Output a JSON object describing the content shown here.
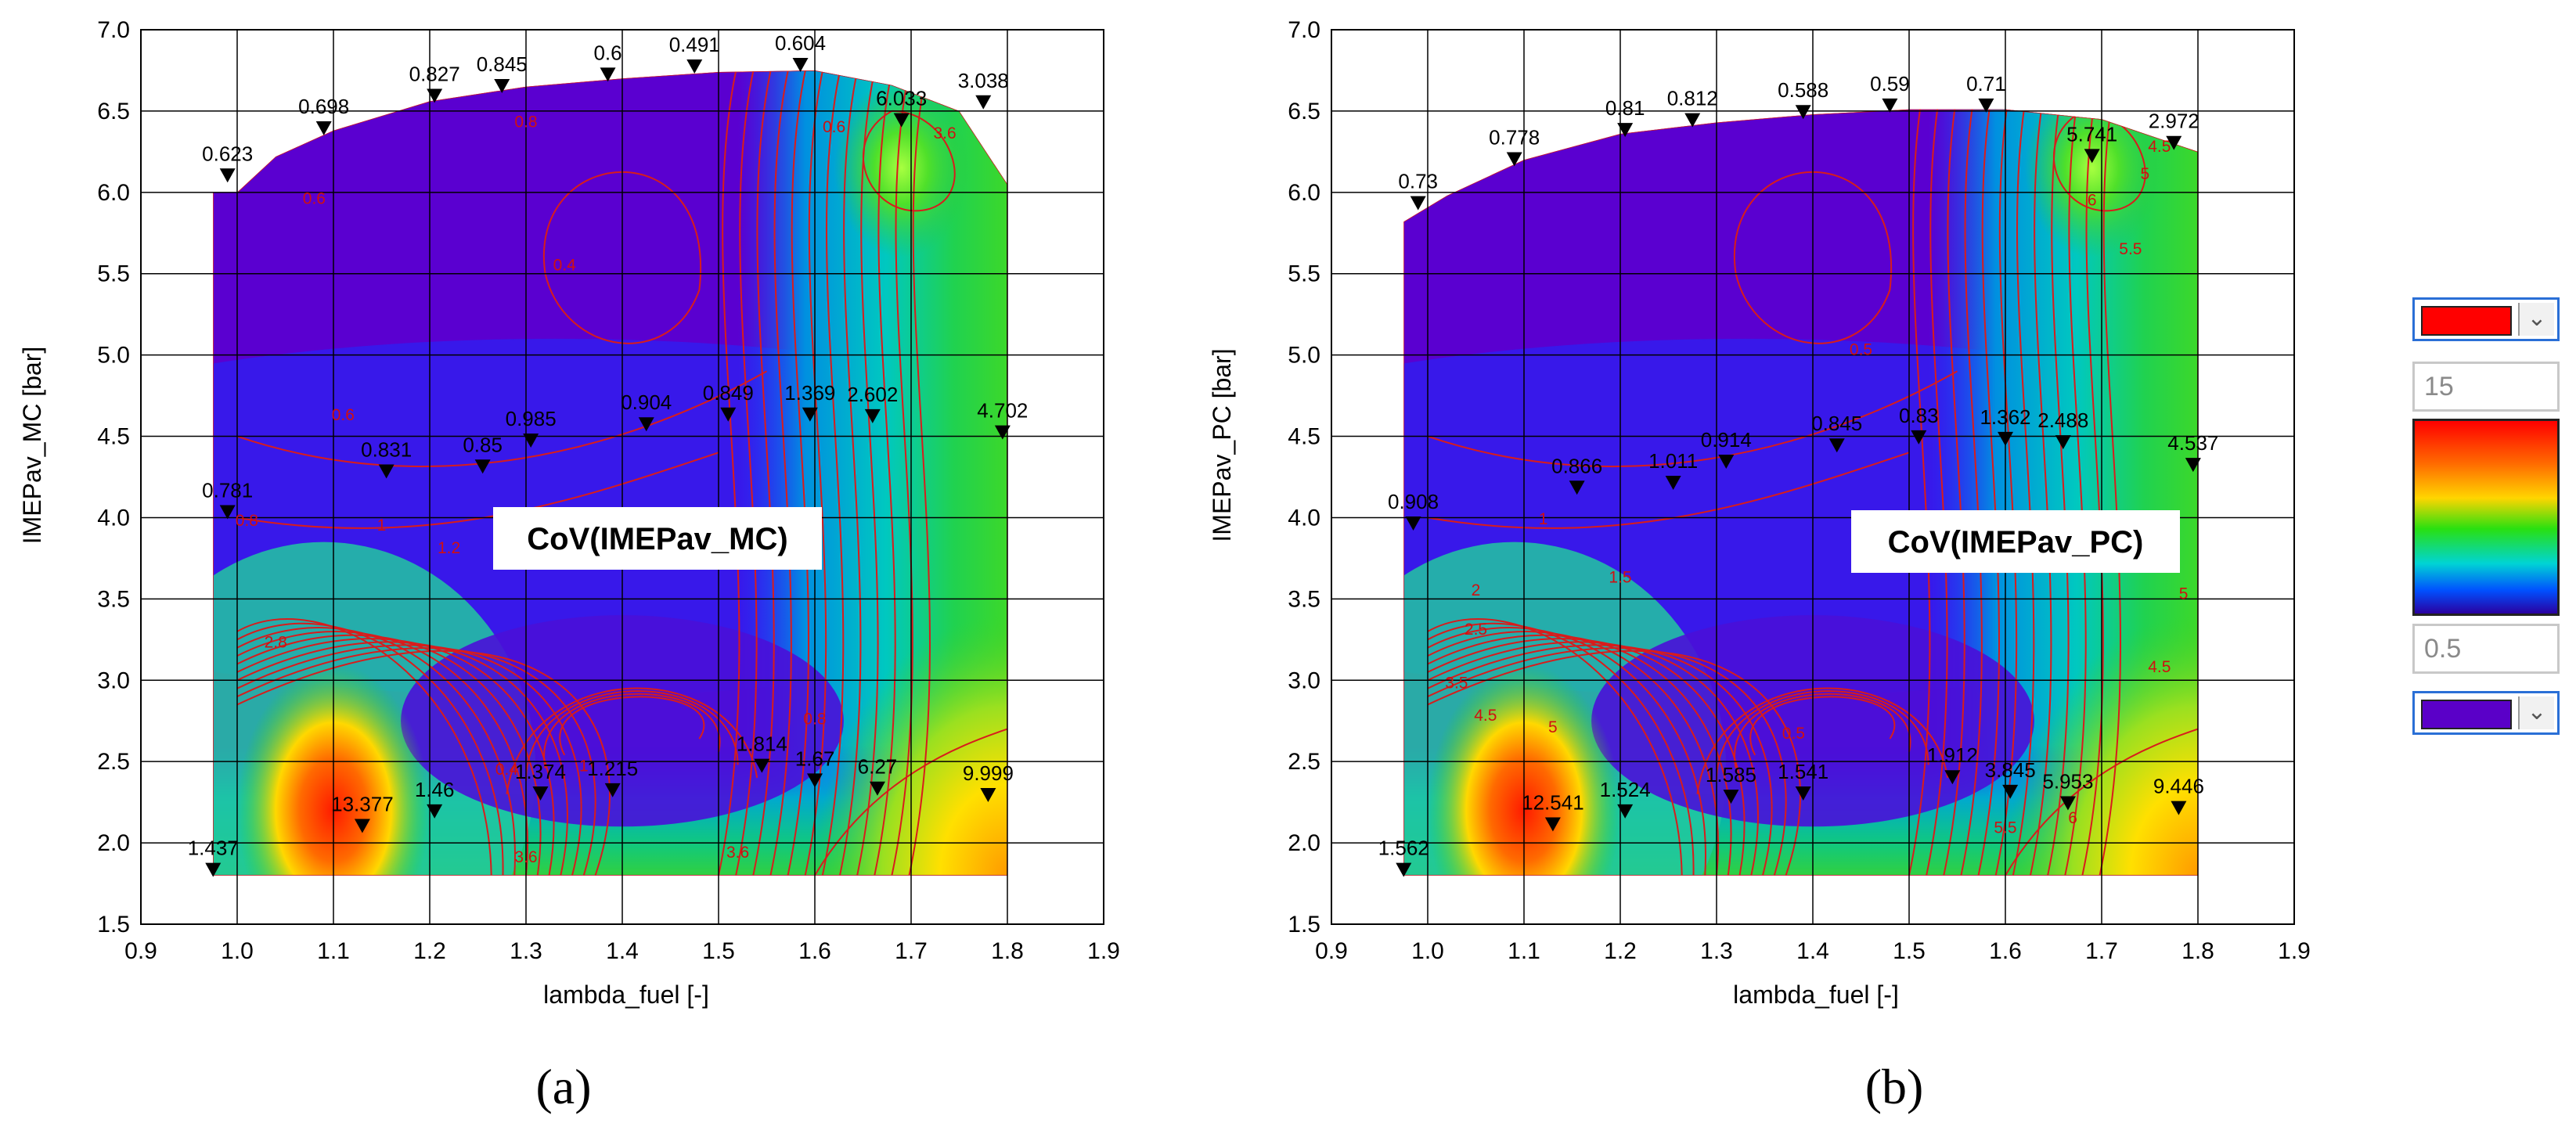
{
  "colors": {
    "panel_bg": "#5a00d0",
    "contour_line": "#d81c1c",
    "grid": "#000000",
    "scale_max_color": "#ff0000",
    "scale_min_color": "#5a00c8"
  },
  "colorbar": {
    "max_value": "15",
    "min_value": "0.5",
    "dropdown_icon": "chevron-down-icon"
  },
  "chart_data": [
    {
      "type": "heatmap",
      "caption": "(a)",
      "annotation": "CoV(IMEPav_MC)",
      "xlabel": "lambda_fuel [-]",
      "ylabel": "IMEPav_MC [bar]",
      "xlim": [
        0.9,
        1.9
      ],
      "ylim": [
        1.5,
        7.0
      ],
      "xticks": [
        "0.9",
        "1.0",
        "1.1",
        "1.2",
        "1.3",
        "1.4",
        "1.5",
        "1.6",
        "1.7",
        "1.8",
        "1.9"
      ],
      "yticks": [
        "1.5",
        "2.0",
        "2.5",
        "3.0",
        "3.5",
        "4.0",
        "4.5",
        "5.0",
        "5.5",
        "6.0",
        "6.5",
        "7.0"
      ],
      "grid": true,
      "points": [
        {
          "x": 0.99,
          "y": 6.07,
          "label": "0.623"
        },
        {
          "x": 1.09,
          "y": 6.36,
          "label": "0.698"
        },
        {
          "x": 1.205,
          "y": 6.56,
          "label": "0.827"
        },
        {
          "x": 1.275,
          "y": 6.62,
          "label": "0.845"
        },
        {
          "x": 1.385,
          "y": 6.69,
          "label": "0.6"
        },
        {
          "x": 1.475,
          "y": 6.74,
          "label": "0.491"
        },
        {
          "x": 1.585,
          "y": 6.75,
          "label": "0.604"
        },
        {
          "x": 1.69,
          "y": 6.41,
          "label": "6.033"
        },
        {
          "x": 1.775,
          "y": 6.52,
          "label": "3.038"
        },
        {
          "x": 0.99,
          "y": 4.0,
          "label": "0.781"
        },
        {
          "x": 1.155,
          "y": 4.25,
          "label": "0.831"
        },
        {
          "x": 1.255,
          "y": 4.28,
          "label": "0.85"
        },
        {
          "x": 1.305,
          "y": 4.44,
          "label": "0.985"
        },
        {
          "x": 1.425,
          "y": 4.54,
          "label": "0.904"
        },
        {
          "x": 1.51,
          "y": 4.6,
          "label": "0.849"
        },
        {
          "x": 1.595,
          "y": 4.6,
          "label": "1.369"
        },
        {
          "x": 1.66,
          "y": 4.59,
          "label": "2.602"
        },
        {
          "x": 1.795,
          "y": 4.49,
          "label": "4.702"
        },
        {
          "x": 0.975,
          "y": 1.8,
          "label": "1.437"
        },
        {
          "x": 1.13,
          "y": 2.07,
          "label": "13.377"
        },
        {
          "x": 1.205,
          "y": 2.16,
          "label": "1.46"
        },
        {
          "x": 1.315,
          "y": 2.27,
          "label": "1.374"
        },
        {
          "x": 1.39,
          "y": 2.29,
          "label": "1.215"
        },
        {
          "x": 1.545,
          "y": 2.44,
          "label": "1.814"
        },
        {
          "x": 1.6,
          "y": 2.35,
          "label": "1.67"
        },
        {
          "x": 1.665,
          "y": 2.3,
          "label": "6.27"
        },
        {
          "x": 1.78,
          "y": 2.26,
          "label": "9.999"
        }
      ],
      "contour_labels": [
        {
          "x": 1.08,
          "y": 5.93,
          "label": "0.6"
        },
        {
          "x": 1.3,
          "y": 6.4,
          "label": "0.8"
        },
        {
          "x": 1.62,
          "y": 6.37,
          "label": "0.6"
        },
        {
          "x": 1.735,
          "y": 6.33,
          "label": "3.6"
        },
        {
          "x": 1.34,
          "y": 5.52,
          "label": "0.4"
        },
        {
          "x": 1.11,
          "y": 4.6,
          "label": "0.6"
        },
        {
          "x": 1.01,
          "y": 3.95,
          "label": "0.8"
        },
        {
          "x": 1.15,
          "y": 3.92,
          "label": "1"
        },
        {
          "x": 1.22,
          "y": 3.78,
          "label": "1.2"
        },
        {
          "x": 1.04,
          "y": 3.2,
          "label": "2.8"
        },
        {
          "x": 1.28,
          "y": 2.42,
          "label": "0.4"
        },
        {
          "x": 1.36,
          "y": 2.44,
          "label": "1"
        },
        {
          "x": 1.3,
          "y": 1.88,
          "label": "3.6"
        },
        {
          "x": 1.52,
          "y": 1.91,
          "label": "3.6"
        },
        {
          "x": 1.6,
          "y": 2.73,
          "label": "0.8"
        }
      ]
    },
    {
      "type": "heatmap",
      "caption": "(b)",
      "annotation": "CoV(IMEPav_PC)",
      "xlabel": "lambda_fuel [-]",
      "ylabel": "IMEPav_PC [bar]",
      "xlim": [
        0.9,
        1.9
      ],
      "ylim": [
        1.5,
        7.0
      ],
      "xticks": [
        "0.9",
        "1.0",
        "1.1",
        "1.2",
        "1.3",
        "1.4",
        "1.5",
        "1.6",
        "1.7",
        "1.8",
        "1.9"
      ],
      "yticks": [
        "1.5",
        "2.0",
        "2.5",
        "3.0",
        "3.5",
        "4.0",
        "4.5",
        "5.0",
        "5.5",
        "6.0",
        "6.5",
        "7.0"
      ],
      "grid": true,
      "points": [
        {
          "x": 0.99,
          "y": 5.9,
          "label": "0.73"
        },
        {
          "x": 1.09,
          "y": 6.17,
          "label": "0.778"
        },
        {
          "x": 1.205,
          "y": 6.35,
          "label": "0.81"
        },
        {
          "x": 1.275,
          "y": 6.41,
          "label": "0.812"
        },
        {
          "x": 1.39,
          "y": 6.46,
          "label": "0.588"
        },
        {
          "x": 1.48,
          "y": 6.5,
          "label": "0.59"
        },
        {
          "x": 1.58,
          "y": 6.5,
          "label": "0.71"
        },
        {
          "x": 1.69,
          "y": 6.19,
          "label": "5.741"
        },
        {
          "x": 1.775,
          "y": 6.27,
          "label": "2.972"
        },
        {
          "x": 0.985,
          "y": 3.93,
          "label": "0.908"
        },
        {
          "x": 1.155,
          "y": 4.15,
          "label": "0.866"
        },
        {
          "x": 1.255,
          "y": 4.18,
          "label": "1.011"
        },
        {
          "x": 1.31,
          "y": 4.31,
          "label": "0.914"
        },
        {
          "x": 1.425,
          "y": 4.41,
          "label": "0.845"
        },
        {
          "x": 1.51,
          "y": 4.46,
          "label": "0.83"
        },
        {
          "x": 1.6,
          "y": 4.45,
          "label": "1.362"
        },
        {
          "x": 1.66,
          "y": 4.43,
          "label": "2.488"
        },
        {
          "x": 1.795,
          "y": 4.29,
          "label": "4.537"
        },
        {
          "x": 0.975,
          "y": 1.8,
          "label": "1.562"
        },
        {
          "x": 1.13,
          "y": 2.08,
          "label": "12.541"
        },
        {
          "x": 1.205,
          "y": 2.16,
          "label": "1.524"
        },
        {
          "x": 1.315,
          "y": 2.25,
          "label": "1.585"
        },
        {
          "x": 1.39,
          "y": 2.27,
          "label": "1.541"
        },
        {
          "x": 1.545,
          "y": 2.37,
          "label": "1.912"
        },
        {
          "x": 1.605,
          "y": 2.28,
          "label": "3.845"
        },
        {
          "x": 1.665,
          "y": 2.21,
          "label": "5.953"
        },
        {
          "x": 1.78,
          "y": 2.18,
          "label": "9.446"
        }
      ],
      "contour_labels": [
        {
          "x": 1.69,
          "y": 5.92,
          "label": "6"
        },
        {
          "x": 1.73,
          "y": 5.62,
          "label": "5.5"
        },
        {
          "x": 1.745,
          "y": 6.08,
          "label": "5"
        },
        {
          "x": 1.76,
          "y": 6.25,
          "label": "4.5"
        },
        {
          "x": 1.45,
          "y": 5.0,
          "label": "0.5"
        },
        {
          "x": 1.12,
          "y": 3.96,
          "label": "1"
        },
        {
          "x": 1.2,
          "y": 3.6,
          "label": "1.5"
        },
        {
          "x": 1.05,
          "y": 3.52,
          "label": "2"
        },
        {
          "x": 1.05,
          "y": 3.28,
          "label": "2.5"
        },
        {
          "x": 1.03,
          "y": 2.95,
          "label": "3.5"
        },
        {
          "x": 1.06,
          "y": 2.75,
          "label": "4.5"
        },
        {
          "x": 1.13,
          "y": 2.68,
          "label": "5"
        },
        {
          "x": 1.38,
          "y": 2.64,
          "label": "0.5"
        },
        {
          "x": 1.76,
          "y": 3.05,
          "label": "4.5"
        },
        {
          "x": 1.785,
          "y": 3.5,
          "label": "5"
        },
        {
          "x": 1.6,
          "y": 2.06,
          "label": "5.5"
        },
        {
          "x": 1.67,
          "y": 2.12,
          "label": "6"
        }
      ]
    }
  ]
}
